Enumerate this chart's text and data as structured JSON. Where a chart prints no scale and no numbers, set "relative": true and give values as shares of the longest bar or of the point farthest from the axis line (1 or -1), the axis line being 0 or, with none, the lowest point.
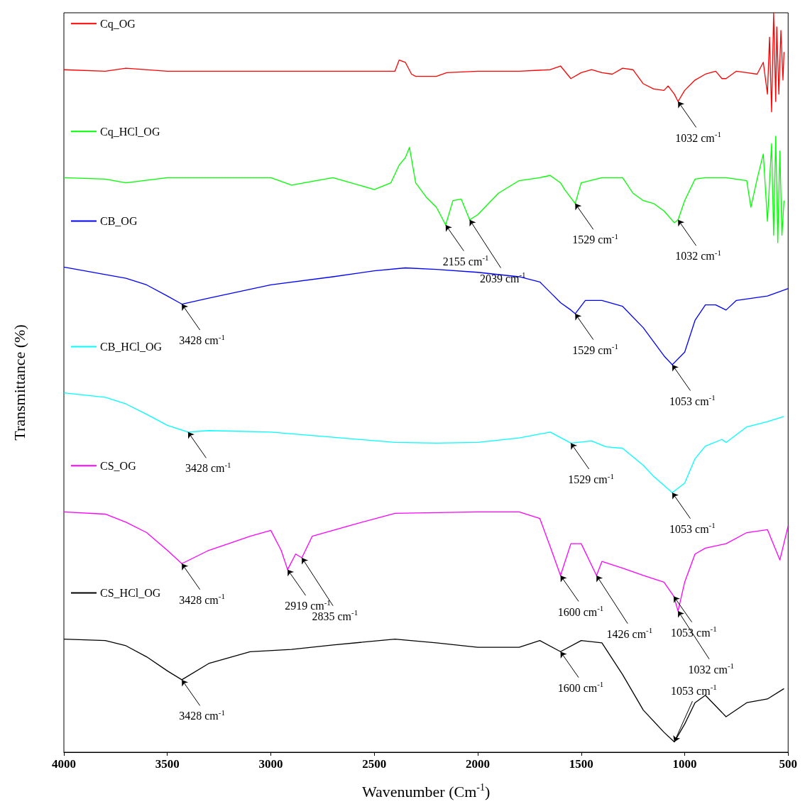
{
  "chart_data": {
    "type": "line",
    "relative": true,
    "xlabel": "Wavenumber (Cm$^{-1}$)",
    "ylabel": "Transmittance (%)",
    "xlim": [
      4000,
      500
    ],
    "xticks": [
      4000,
      3500,
      3000,
      2500,
      2000,
      1500,
      1000,
      500
    ],
    "legend": "top left",
    "marker": "none",
    "series": [
      {
        "name": "Cq_OG",
        "color": "#ff0000",
        "x": [
          4000,
          3800,
          3700,
          3500,
          3000,
          2600,
          2400,
          2380,
          2350,
          2320,
          2300,
          2200,
          2150,
          2000,
          1800,
          1650,
          1600,
          1550,
          1500,
          1450,
          1400,
          1350,
          1300,
          1250,
          1200,
          1150,
          1100,
          1080,
          1050,
          1032,
          1000,
          950,
          900,
          850,
          820,
          800,
          750,
          700,
          650,
          620,
          600,
          590,
          580,
          570,
          560,
          555,
          545,
          535,
          525,
          520
        ],
        "values": [
          0.923,
          0.921,
          0.925,
          0.921,
          0.921,
          0.921,
          0.921,
          0.936,
          0.933,
          0.917,
          0.914,
          0.914,
          0.919,
          0.921,
          0.921,
          0.923,
          0.928,
          0.911,
          0.919,
          0.923,
          0.919,
          0.917,
          0.925,
          0.923,
          0.904,
          0.897,
          0.895,
          0.901,
          0.89,
          0.88,
          0.895,
          0.909,
          0.917,
          0.921,
          0.911,
          0.911,
          0.921,
          0.919,
          0.917,
          0.933,
          0.89,
          0.967,
          0.866,
          1.0,
          0.88,
          0.981,
          0.89,
          0.976,
          0.909,
          0.947
        ]
      },
      {
        "name": "Cq_HCl_OG",
        "color": "#00ff00",
        "x": [
          4000,
          3800,
          3700,
          3500,
          3000,
          2900,
          2700,
          2500,
          2420,
          2380,
          2350,
          2330,
          2300,
          2250,
          2200,
          2155,
          2120,
          2080,
          2039,
          2000,
          1900,
          1800,
          1700,
          1650,
          1600,
          1580,
          1529,
          1500,
          1400,
          1300,
          1250,
          1200,
          1150,
          1100,
          1050,
          1032,
          1000,
          950,
          900,
          800,
          700,
          680,
          650,
          620,
          600,
          580,
          570,
          560,
          550,
          540,
          530,
          520
        ],
        "values": [
          0.777,
          0.775,
          0.77,
          0.777,
          0.777,
          0.767,
          0.777,
          0.761,
          0.77,
          0.794,
          0.804,
          0.818,
          0.77,
          0.751,
          0.737,
          0.713,
          0.746,
          0.748,
          0.72,
          0.727,
          0.756,
          0.773,
          0.777,
          0.78,
          0.77,
          0.761,
          0.742,
          0.77,
          0.777,
          0.777,
          0.756,
          0.746,
          0.742,
          0.732,
          0.716,
          0.72,
          0.746,
          0.775,
          0.777,
          0.777,
          0.773,
          0.737,
          0.775,
          0.809,
          0.718,
          0.823,
          0.699,
          0.833,
          0.689,
          0.813,
          0.699,
          0.746
        ]
      },
      {
        "name": "CB_OG",
        "color": "#0000ff",
        "x": [
          4000,
          3800,
          3700,
          3600,
          3500,
          3430,
          3300,
          3000,
          2700,
          2500,
          2350,
          2200,
          2000,
          1800,
          1700,
          1650,
          1600,
          1550,
          1529,
          1480,
          1400,
          1300,
          1200,
          1150,
          1100,
          1060,
          1000,
          950,
          900,
          850,
          800,
          750,
          600,
          500
        ],
        "values": [
          0.656,
          0.646,
          0.641,
          0.632,
          0.617,
          0.606,
          0.614,
          0.632,
          0.643,
          0.651,
          0.655,
          0.653,
          0.649,
          0.643,
          0.636,
          0.622,
          0.608,
          0.598,
          0.593,
          0.611,
          0.611,
          0.603,
          0.574,
          0.555,
          0.536,
          0.524,
          0.541,
          0.584,
          0.605,
          0.605,
          0.598,
          0.611,
          0.617,
          0.627
        ]
      },
      {
        "name": "CB_HCl_OG",
        "color": "#00ffff",
        "x": [
          4000,
          3800,
          3700,
          3600,
          3500,
          3400,
          3300,
          3000,
          2700,
          2400,
          2200,
          2000,
          1800,
          1650,
          1550,
          1450,
          1380,
          1300,
          1200,
          1150,
          1060,
          1000,
          950,
          900,
          820,
          800,
          700,
          600,
          520
        ],
        "values": [
          0.486,
          0.48,
          0.471,
          0.457,
          0.442,
          0.433,
          0.435,
          0.433,
          0.426,
          0.419,
          0.418,
          0.419,
          0.425,
          0.433,
          0.418,
          0.421,
          0.413,
          0.411,
          0.388,
          0.373,
          0.351,
          0.364,
          0.397,
          0.414,
          0.423,
          0.419,
          0.44,
          0.447,
          0.454
        ]
      },
      {
        "name": "CS_OG",
        "color": "#ff00ff",
        "x": [
          4000,
          3800,
          3700,
          3600,
          3500,
          3430,
          3300,
          3100,
          3000,
          2950,
          2919,
          2880,
          2850,
          2800,
          2600,
          2400,
          2000,
          1800,
          1700,
          1650,
          1600,
          1550,
          1500,
          1426,
          1400,
          1300,
          1200,
          1100,
          1053,
          1032,
          1000,
          950,
          900,
          800,
          700,
          600,
          540,
          500
        ],
        "values": [
          0.325,
          0.322,
          0.311,
          0.297,
          0.273,
          0.255,
          0.273,
          0.292,
          0.3,
          0.273,
          0.247,
          0.268,
          0.263,
          0.292,
          0.308,
          0.323,
          0.325,
          0.325,
          0.316,
          0.278,
          0.239,
          0.282,
          0.282,
          0.239,
          0.258,
          0.249,
          0.239,
          0.23,
          0.211,
          0.191,
          0.23,
          0.268,
          0.276,
          0.282,
          0.297,
          0.301,
          0.26,
          0.306
        ]
      },
      {
        "name": "CS_HCl_OG",
        "color": "#000000",
        "x": [
          4000,
          3800,
          3700,
          3600,
          3500,
          3430,
          3300,
          3100,
          2900,
          2700,
          2400,
          2200,
          2000,
          1800,
          1700,
          1600,
          1500,
          1400,
          1300,
          1200,
          1100,
          1050,
          1000,
          950,
          900,
          800,
          700,
          600,
          520
        ],
        "values": [
          0.153,
          0.151,
          0.144,
          0.129,
          0.11,
          0.098,
          0.12,
          0.136,
          0.139,
          0.145,
          0.153,
          0.148,
          0.142,
          0.142,
          0.151,
          0.136,
          0.151,
          0.148,
          0.105,
          0.057,
          0.027,
          0.014,
          0.038,
          0.067,
          0.077,
          0.048,
          0.067,
          0.072,
          0.086
        ]
      }
    ],
    "annotations": [
      {
        "text": "1032 cm$^{-1}$",
        "x": 1032,
        "y": 0.88
      },
      {
        "text": "2155 cm$^{-1}$",
        "x": 2155,
        "y": 0.713
      },
      {
        "text": "2039 cm$^{-1}$",
        "x": 2039,
        "y": 0.72
      },
      {
        "text": "1529 cm$^{-1}$",
        "x": 1529,
        "y": 0.742
      },
      {
        "text": "1032 cm$^{-1}$",
        "x": 1032,
        "y": 0.72
      },
      {
        "text": "3428 cm$^{-1}$",
        "x": 3430,
        "y": 0.606
      },
      {
        "text": "1529 cm$^{-1}$",
        "x": 1529,
        "y": 0.593
      },
      {
        "text": "1053 cm$^{-1}$",
        "x": 1060,
        "y": 0.524
      },
      {
        "text": "3428 cm$^{-1}$",
        "x": 3400,
        "y": 0.433
      },
      {
        "text": "1529 cm$^{-1}$",
        "x": 1550,
        "y": 0.418
      },
      {
        "text": "1053 cm$^{-1}$",
        "x": 1060,
        "y": 0.351
      },
      {
        "text": "3428 cm$^{-1}$",
        "x": 3430,
        "y": 0.255
      },
      {
        "text": "2919 cm$^{-1}$",
        "x": 2919,
        "y": 0.247
      },
      {
        "text": "2835 cm$^{-1}$",
        "x": 2850,
        "y": 0.263
      },
      {
        "text": "1600 cm$^{-1}$",
        "x": 1600,
        "y": 0.239
      },
      {
        "text": "1426 cm$^{-1}$",
        "x": 1426,
        "y": 0.239
      },
      {
        "text": "1053 cm$^{-1}$",
        "x": 1053,
        "y": 0.211
      },
      {
        "text": "1032 cm$^{-1}$",
        "x": 1032,
        "y": 0.191
      },
      {
        "text": "3428 cm$^{-1}$",
        "x": 3430,
        "y": 0.098
      },
      {
        "text": "1600 cm$^{-1}$",
        "x": 1600,
        "y": 0.136
      },
      {
        "text": "1053 cm$^{-1}$",
        "x": 1050,
        "y": 0.014
      }
    ]
  }
}
